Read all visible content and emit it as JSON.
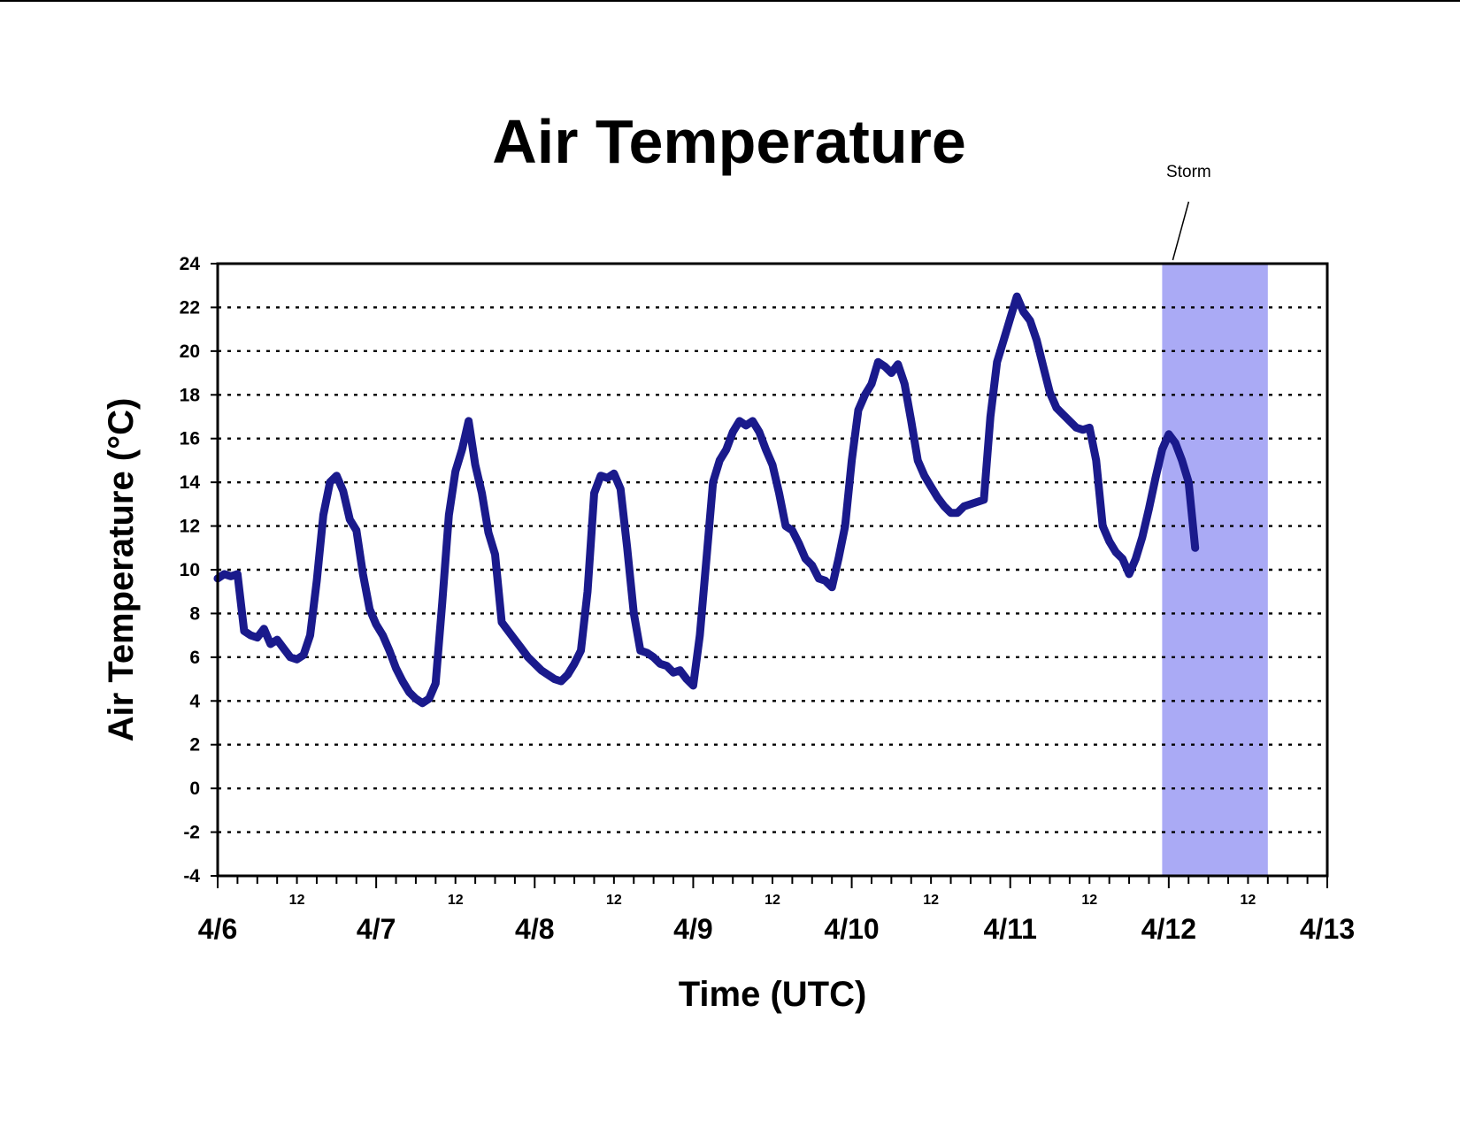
{
  "chart_data": {
    "type": "line",
    "title": "Air Temperature",
    "xlabel": "Time (UTC)",
    "ylabel": "Air Temperature (°C)",
    "ylim": [
      -4,
      24
    ],
    "yticks": [
      -4,
      -2,
      0,
      2,
      4,
      6,
      8,
      10,
      12,
      14,
      16,
      18,
      20,
      22,
      24
    ],
    "xlim": [
      "4/6 00:00",
      "4/13 00:00"
    ],
    "x_day_labels": [
      "4/6",
      "4/7",
      "4/8",
      "4/9",
      "4/10",
      "4/11",
      "4/12",
      "4/13"
    ],
    "x_hour_label": "12",
    "grid": "horizontal dotted",
    "legend": "none",
    "annotation": {
      "label": "Storm",
      "shaded_range": [
        "4/11 23:00",
        "4/12 15:00"
      ],
      "color": "#aaaaf5"
    },
    "series": [
      {
        "color": "#1a1a8c",
        "points": [
          [
            "4/6 00:00",
            9.6
          ],
          [
            "4/6 01:00",
            9.8
          ],
          [
            "4/6 02:00",
            9.7
          ],
          [
            "4/6 03:00",
            9.8
          ],
          [
            "4/6 04:00",
            7.2
          ],
          [
            "4/6 05:00",
            7.0
          ],
          [
            "4/6 06:00",
            6.9
          ],
          [
            "4/6 07:00",
            7.3
          ],
          [
            "4/6 08:00",
            6.6
          ],
          [
            "4/6 09:00",
            6.8
          ],
          [
            "4/6 10:00",
            6.4
          ],
          [
            "4/6 11:00",
            6.0
          ],
          [
            "4/6 12:00",
            5.9
          ],
          [
            "4/6 13:00",
            6.1
          ],
          [
            "4/6 14:00",
            7.0
          ],
          [
            "4/6 15:00",
            9.5
          ],
          [
            "4/6 16:00",
            12.5
          ],
          [
            "4/6 17:00",
            14.0
          ],
          [
            "4/6 18:00",
            14.3
          ],
          [
            "4/6 19:00",
            13.6
          ],
          [
            "4/6 20:00",
            12.3
          ],
          [
            "4/6 21:00",
            11.8
          ],
          [
            "4/6 22:00",
            9.8
          ],
          [
            "4/6 23:00",
            8.2
          ],
          [
            "4/7 00:00",
            7.5
          ],
          [
            "4/7 01:00",
            7.0
          ],
          [
            "4/7 02:00",
            6.3
          ],
          [
            "4/7 03:00",
            5.5
          ],
          [
            "4/7 04:00",
            4.9
          ],
          [
            "4/7 05:00",
            4.4
          ],
          [
            "4/7 06:00",
            4.1
          ],
          [
            "4/7 07:00",
            3.9
          ],
          [
            "4/7 08:00",
            4.1
          ],
          [
            "4/7 09:00",
            4.8
          ],
          [
            "4/7 10:00",
            8.5
          ],
          [
            "4/7 11:00",
            12.5
          ],
          [
            "4/7 12:00",
            14.5
          ],
          [
            "4/7 13:00",
            15.5
          ],
          [
            "4/7 14:00",
            16.8
          ],
          [
            "4/7 15:00",
            14.8
          ],
          [
            "4/7 16:00",
            13.5
          ],
          [
            "4/7 17:00",
            11.7
          ],
          [
            "4/7 18:00",
            10.7
          ],
          [
            "4/7 19:00",
            7.6
          ],
          [
            "4/7 20:00",
            7.2
          ],
          [
            "4/7 21:00",
            6.8
          ],
          [
            "4/7 22:00",
            6.4
          ],
          [
            "4/7 23:00",
            6.0
          ],
          [
            "4/8 00:00",
            5.7
          ],
          [
            "4/8 01:00",
            5.4
          ],
          [
            "4/8 02:00",
            5.2
          ],
          [
            "4/8 03:00",
            5.0
          ],
          [
            "4/8 04:00",
            4.9
          ],
          [
            "4/8 05:00",
            5.2
          ],
          [
            "4/8 06:00",
            5.7
          ],
          [
            "4/8 07:00",
            6.3
          ],
          [
            "4/8 08:00",
            9.0
          ],
          [
            "4/8 09:00",
            13.5
          ],
          [
            "4/8 10:00",
            14.3
          ],
          [
            "4/8 11:00",
            14.2
          ],
          [
            "4/8 12:00",
            14.4
          ],
          [
            "4/8 13:00",
            13.7
          ],
          [
            "4/8 14:00",
            11.0
          ],
          [
            "4/8 15:00",
            8.0
          ],
          [
            "4/8 16:00",
            6.3
          ],
          [
            "4/8 17:00",
            6.2
          ],
          [
            "4/8 18:00",
            6.0
          ],
          [
            "4/8 19:00",
            5.7
          ],
          [
            "4/8 20:00",
            5.6
          ],
          [
            "4/8 21:00",
            5.3
          ],
          [
            "4/8 22:00",
            5.4
          ],
          [
            "4/8 23:00",
            5.0
          ],
          [
            "4/9 00:00",
            4.7
          ],
          [
            "4/9 01:00",
            7.0
          ],
          [
            "4/9 02:00",
            10.5
          ],
          [
            "4/9 03:00",
            14.0
          ],
          [
            "4/9 04:00",
            15.0
          ],
          [
            "4/9 05:00",
            15.5
          ],
          [
            "4/9 06:00",
            16.3
          ],
          [
            "4/9 07:00",
            16.8
          ],
          [
            "4/9 08:00",
            16.6
          ],
          [
            "4/9 09:00",
            16.8
          ],
          [
            "4/9 10:00",
            16.3
          ],
          [
            "4/9 11:00",
            15.5
          ],
          [
            "4/9 12:00",
            14.8
          ],
          [
            "4/9 13:00",
            13.5
          ],
          [
            "4/9 14:00",
            12.0
          ],
          [
            "4/9 15:00",
            11.8
          ],
          [
            "4/9 16:00",
            11.2
          ],
          [
            "4/9 17:00",
            10.5
          ],
          [
            "4/9 18:00",
            10.2
          ],
          [
            "4/9 19:00",
            9.6
          ],
          [
            "4/9 20:00",
            9.5
          ],
          [
            "4/9 21:00",
            9.2
          ],
          [
            "4/9 22:00",
            10.5
          ],
          [
            "4/9 23:00",
            12.0
          ],
          [
            "4/10 00:00",
            15.0
          ],
          [
            "4/10 01:00",
            17.3
          ],
          [
            "4/10 02:00",
            18.0
          ],
          [
            "4/10 03:00",
            18.5
          ],
          [
            "4/10 04:00",
            19.5
          ],
          [
            "4/10 05:00",
            19.3
          ],
          [
            "4/10 06:00",
            19.0
          ],
          [
            "4/10 07:00",
            19.4
          ],
          [
            "4/10 08:00",
            18.5
          ],
          [
            "4/10 09:00",
            16.8
          ],
          [
            "4/10 10:00",
            15.0
          ],
          [
            "4/10 11:00",
            14.3
          ],
          [
            "4/10 12:00",
            13.8
          ],
          [
            "4/10 13:00",
            13.3
          ],
          [
            "4/10 14:00",
            12.9
          ],
          [
            "4/10 15:00",
            12.6
          ],
          [
            "4/10 16:00",
            12.6
          ],
          [
            "4/10 17:00",
            12.9
          ],
          [
            "4/10 18:00",
            13.0
          ],
          [
            "4/10 19:00",
            13.1
          ],
          [
            "4/10 20:00",
            13.2
          ],
          [
            "4/10 21:00",
            17.0
          ],
          [
            "4/10 22:00",
            19.5
          ],
          [
            "4/10 23:00",
            20.5
          ],
          [
            "4/11 00:00",
            21.5
          ],
          [
            "4/11 01:00",
            22.5
          ],
          [
            "4/11 02:00",
            21.8
          ],
          [
            "4/11 03:00",
            21.4
          ],
          [
            "4/11 04:00",
            20.5
          ],
          [
            "4/11 05:00",
            19.3
          ],
          [
            "4/11 06:00",
            18.1
          ],
          [
            "4/11 07:00",
            17.4
          ],
          [
            "4/11 08:00",
            17.1
          ],
          [
            "4/11 09:00",
            16.8
          ],
          [
            "4/11 10:00",
            16.5
          ],
          [
            "4/11 11:00",
            16.4
          ],
          [
            "4/11 12:00",
            16.5
          ],
          [
            "4/11 13:00",
            15.0
          ],
          [
            "4/11 14:00",
            12.0
          ],
          [
            "4/11 15:00",
            11.3
          ],
          [
            "4/11 16:00",
            10.8
          ],
          [
            "4/11 17:00",
            10.5
          ],
          [
            "4/11 18:00",
            9.8
          ],
          [
            "4/11 19:00",
            10.5
          ],
          [
            "4/11 20:00",
            11.5
          ],
          [
            "4/11 21:00",
            12.8
          ],
          [
            "4/11 22:00",
            14.2
          ],
          [
            "4/11 23:00",
            15.5
          ],
          [
            "4/12 00:00",
            16.2
          ],
          [
            "4/12 01:00",
            15.8
          ],
          [
            "4/12 02:00",
            15.0
          ],
          [
            "4/12 03:00",
            14.0
          ],
          [
            "4/12 04:00",
            11.0
          ]
        ]
      }
    ]
  }
}
